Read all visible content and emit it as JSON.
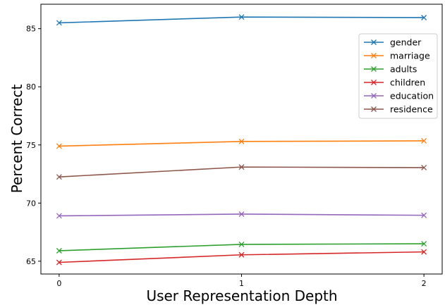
{
  "chart_data": {
    "type": "line",
    "title": "",
    "xlabel": "User Representation Depth",
    "ylabel": "Percent Correct",
    "x": [
      0,
      1,
      2
    ],
    "x_ticks": [
      "0",
      "1",
      "2"
    ],
    "y_ticks": [
      "65",
      "70",
      "75",
      "80",
      "85"
    ],
    "xlim": [
      -0.1,
      2.1
    ],
    "ylim": [
      63.9,
      87.1
    ],
    "grid": false,
    "legend_position": "upper-right",
    "marker": "x",
    "series": [
      {
        "name": "gender",
        "color": "#1f77b4",
        "values": [
          85.5,
          86.0,
          85.95
        ]
      },
      {
        "name": "marriage",
        "color": "#ff7f0e",
        "values": [
          74.9,
          75.3,
          75.35
        ]
      },
      {
        "name": "adults",
        "color": "#2ca02c",
        "values": [
          65.9,
          66.45,
          66.5
        ]
      },
      {
        "name": "children",
        "color": "#d62728",
        "values": [
          64.9,
          65.55,
          65.8
        ]
      },
      {
        "name": "education",
        "color": "#9467bd",
        "values": [
          68.9,
          69.05,
          68.95
        ]
      },
      {
        "name": "residence",
        "color": "#8c564b",
        "values": [
          72.25,
          73.1,
          73.05
        ]
      }
    ]
  }
}
